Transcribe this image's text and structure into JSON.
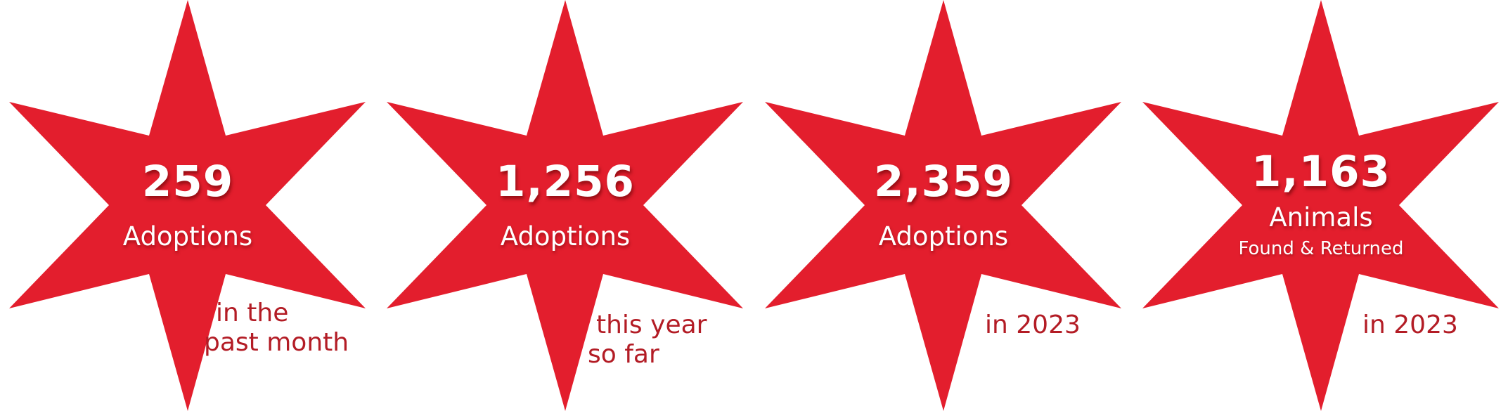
{
  "colors": {
    "star": "#e31e2d",
    "period_text": "#b31c25",
    "stat_text": "#ffffff",
    "background": "#ffffff"
  },
  "stats": [
    {
      "count": "259",
      "label": "Adoptions",
      "period_line1": "in the",
      "period_line2": "past month"
    },
    {
      "count": "1,256",
      "label": "Adoptions",
      "period_line1": "this year",
      "period_line2": "so far"
    },
    {
      "count": "2,359",
      "label": "Adoptions",
      "period_line1": "in 2023"
    },
    {
      "count": "1,163",
      "label": "Animals",
      "sublabel": "Found & Returned",
      "period_line1": "in 2023"
    }
  ]
}
